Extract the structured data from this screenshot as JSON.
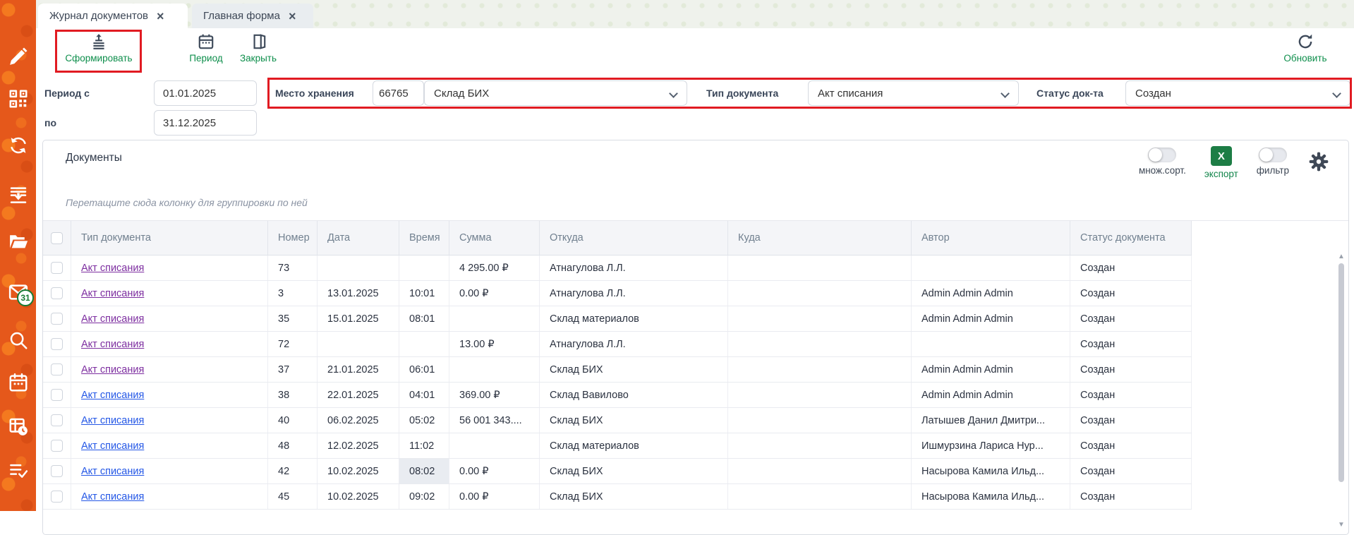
{
  "tabs": [
    {
      "label": "Журнал документов",
      "active": true
    },
    {
      "label": "Главная форма",
      "active": false
    }
  ],
  "toolbar": {
    "generate_label": "Сформировать",
    "period_label": "Период",
    "close_label": "Закрыть",
    "refresh_label": "Обновить"
  },
  "filters": {
    "period_from_label": "Период с",
    "period_from_value": "01.01.2025",
    "period_to_label": "по",
    "period_to_value": "31.12.2025",
    "storage_label": "Место хранения",
    "storage_code_value": "66765",
    "storage_selected": "Склад БИХ",
    "doc_type_label": "Тип документа",
    "doc_type_selected": "Акт списания",
    "status_label": "Статус док-та",
    "status_selected": "Создан"
  },
  "panel": {
    "title": "Документы",
    "multisort_label": "множ.сорт.",
    "export_label": "экспорт",
    "export_icon_letter": "X",
    "filter_label": "фильтр",
    "groupby_hint": "Перетащите сюда колонку для группировки по ней"
  },
  "sidebar": {
    "icons": [
      {
        "name": "pencil"
      },
      {
        "name": "qr-code"
      },
      {
        "name": "sync"
      },
      {
        "name": "import-tray"
      },
      {
        "name": "folder-open"
      },
      {
        "name": "mail",
        "badge": "31"
      },
      {
        "name": "search"
      },
      {
        "name": "calendar"
      },
      {
        "name": "report-clock"
      },
      {
        "name": "checklist"
      }
    ]
  },
  "table": {
    "columns": [
      "Тип документа",
      "Номер",
      "Дата",
      "Время",
      "Сумма",
      "Откуда",
      "Куда",
      "Автор",
      "Статус документа"
    ],
    "rows": [
      {
        "type": "Акт списания",
        "number": "73",
        "date": "",
        "time": "",
        "sum": "4 295.00 ₽",
        "from": "Атнагулова Л.Л.",
        "to": "",
        "author": "",
        "status": "Создан",
        "link": "visited",
        "time_selected": false
      },
      {
        "type": "Акт списания",
        "number": "3",
        "date": "13.01.2025",
        "time": "10:01",
        "sum": "0.00 ₽",
        "from": "Атнагулова Л.Л.",
        "to": "",
        "author": "Admin Admin Admin",
        "status": "Создан",
        "link": "visited",
        "time_selected": false
      },
      {
        "type": "Акт списания",
        "number": "35",
        "date": "15.01.2025",
        "time": "08:01",
        "sum": "",
        "from": "Склад материалов",
        "to": "",
        "author": "Admin Admin Admin",
        "status": "Создан",
        "link": "visited",
        "time_selected": false
      },
      {
        "type": "Акт списания",
        "number": "72",
        "date": "",
        "time": "",
        "sum": "13.00 ₽",
        "from": "Атнагулова Л.Л.",
        "to": "",
        "author": "",
        "status": "Создан",
        "link": "visited",
        "time_selected": false
      },
      {
        "type": "Акт списания",
        "number": "37",
        "date": "21.01.2025",
        "time": "06:01",
        "sum": "",
        "from": "Склад БИХ",
        "to": "",
        "author": "Admin Admin Admin",
        "status": "Создан",
        "link": "visited",
        "time_selected": false
      },
      {
        "type": "Акт списания",
        "number": "38",
        "date": "22.01.2025",
        "time": "04:01",
        "sum": "369.00 ₽",
        "from": "Склад Вавилово",
        "to": "",
        "author": "Admin Admin Admin",
        "status": "Создан",
        "link": "new",
        "time_selected": false
      },
      {
        "type": "Акт списания",
        "number": "40",
        "date": "06.02.2025",
        "time": "05:02",
        "sum": "56 001 343....",
        "from": "Склад БИХ",
        "to": "",
        "author": "Латышев Данил Дмитри...",
        "status": "Создан",
        "link": "new",
        "time_selected": false
      },
      {
        "type": "Акт списания",
        "number": "48",
        "date": "12.02.2025",
        "time": "11:02",
        "sum": "",
        "from": "Склад материалов",
        "to": "",
        "author": "Ишмурзина Лариса Нур...",
        "status": "Создан",
        "link": "new",
        "time_selected": false
      },
      {
        "type": "Акт списания",
        "number": "42",
        "date": "10.02.2025",
        "time": "08:02",
        "sum": "0.00 ₽",
        "from": "Склад БИХ",
        "to": "",
        "author": "Насырова Камила Ильд...",
        "status": "Создан",
        "link": "new",
        "time_selected": true
      },
      {
        "type": "Акт списания",
        "number": "45",
        "date": "10.02.2025",
        "time": "09:02",
        "sum": "0.00 ₽",
        "from": "Склад БИХ",
        "to": "",
        "author": "Насырова Камила Ильд...",
        "status": "Создан",
        "link": "new",
        "time_selected": false
      }
    ]
  },
  "colors": {
    "sidebar_orange": "#e5581b",
    "highlight_red": "#e11b22",
    "action_green": "#0d8e4b",
    "excel_green": "#1d7d45",
    "link_new": "#2457e6",
    "link_visited": "#7d2ea0",
    "badge_green": "#157a33"
  }
}
